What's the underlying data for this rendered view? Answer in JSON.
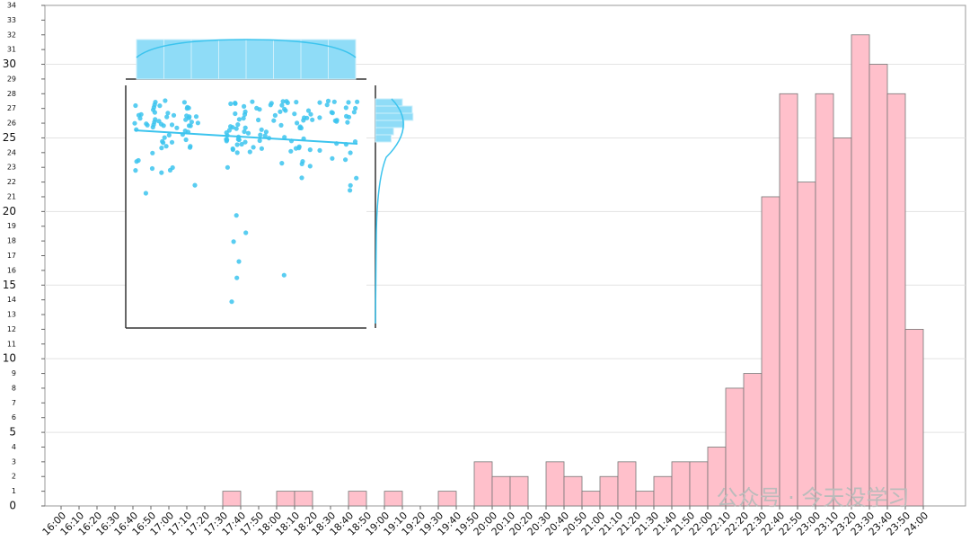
{
  "chart_data": {
    "type": "histogram",
    "bins": [
      "16:00",
      "16:10",
      "16:20",
      "16:30",
      "16:40",
      "16:50",
      "17:00",
      "17:10",
      "17:20",
      "17:30",
      "17:40",
      "17:50",
      "18:00",
      "18:10",
      "18:20",
      "18:30",
      "18:40",
      "18:50",
      "19:00",
      "19:10",
      "19:20",
      "19:30",
      "19:40",
      "19:50",
      "20:00",
      "20:10",
      "20:20",
      "20:30",
      "20:40",
      "20:50",
      "21:00",
      "21:10",
      "21:20",
      "21:30",
      "21:40",
      "21:50",
      "22:00",
      "22:10",
      "22:20",
      "22:30",
      "22:40",
      "22:50",
      "23:00",
      "23:10",
      "23:20",
      "23:30",
      "23:40",
      "23:50",
      "24:00"
    ],
    "values": [
      0,
      0,
      0,
      0,
      0,
      0,
      0,
      0,
      0,
      1,
      0,
      0,
      1,
      1,
      0,
      0,
      1,
      0,
      1,
      0,
      0,
      1,
      0,
      3,
      2,
      2,
      0,
      3,
      2,
      1,
      2,
      3,
      1,
      2,
      3,
      3,
      4,
      8,
      9,
      21,
      28,
      22,
      28,
      25,
      32,
      30,
      28,
      12
    ],
    "color": "#ffc0cb",
    "ylim": [
      0,
      34
    ],
    "yticks": [
      0,
      1,
      2,
      3,
      4,
      5,
      6,
      7,
      8,
      9,
      10,
      11,
      12,
      13,
      14,
      15,
      16,
      17,
      18,
      19,
      20,
      21,
      22,
      23,
      24,
      25,
      26,
      27,
      28,
      29,
      30,
      31,
      32,
      33,
      34
    ],
    "grid": true,
    "watermark": "公众号 · 今天没学习"
  }
}
